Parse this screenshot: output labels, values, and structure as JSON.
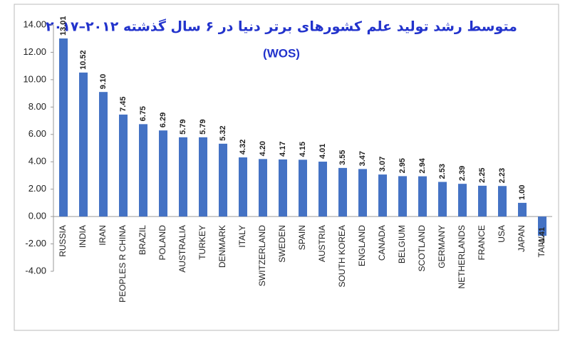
{
  "chart_data": {
    "type": "bar",
    "title": "متوسط رشد تولید علم کشورهای برتر دنیا در ۶ سال گذشته ۲۰۱۲–۲۰۱۷",
    "subtitle": "(WOS)",
    "categories": [
      "RUSSIA",
      "INDIA",
      "IRAN",
      "PEOPLES R CHINA",
      "BRAZIL",
      "POLAND",
      "AUSTRALIA",
      "TURKEY",
      "DENMARK",
      "ITALY",
      "SWITZERLAND",
      "SWEDEN",
      "SPAIN",
      "AUSTRIA",
      "SOUTH KOREA",
      "ENGLAND",
      "CANADA",
      "BELGIUM",
      "SCOTLAND",
      "GERMANY",
      "NETHERLANDS",
      "FRANCE",
      "USA",
      "JAPAN",
      "TAIWAN"
    ],
    "values": [
      13.01,
      10.52,
      9.1,
      7.45,
      6.75,
      6.29,
      5.79,
      5.79,
      5.32,
      4.32,
      4.2,
      4.17,
      4.15,
      4.01,
      3.55,
      3.47,
      3.07,
      2.95,
      2.94,
      2.53,
      2.39,
      2.25,
      2.23,
      1.0,
      -1.41
    ],
    "value_labels": [
      "13.01",
      "10.52",
      "9.10",
      "7.45",
      "6.75",
      "6.29",
      "5.79",
      "5.79",
      "5.32",
      "4.32",
      "4.20",
      "4.17",
      "4.15",
      "4.01",
      "3.55",
      "3.47",
      "3.07",
      "2.95",
      "2.94",
      "2.53",
      "2.39",
      "2.25",
      "2.23",
      "1.00",
      "-1.41"
    ],
    "color": "#4472c4",
    "ylim": [
      -4,
      14
    ],
    "yticks": [
      {
        "value": -4,
        "label": "-4.00"
      },
      {
        "value": -2,
        "label": "-2.00"
      },
      {
        "value": 0,
        "label": "0.00"
      },
      {
        "value": 2,
        "label": "2.00"
      },
      {
        "value": 4,
        "label": "4.00"
      },
      {
        "value": 6,
        "label": "6.00"
      },
      {
        "value": 8,
        "label": "8.00"
      },
      {
        "value": 10,
        "label": "10.00"
      },
      {
        "value": 12,
        "label": "12.00"
      },
      {
        "value": 14,
        "label": "14.00"
      }
    ],
    "grid": false
  }
}
